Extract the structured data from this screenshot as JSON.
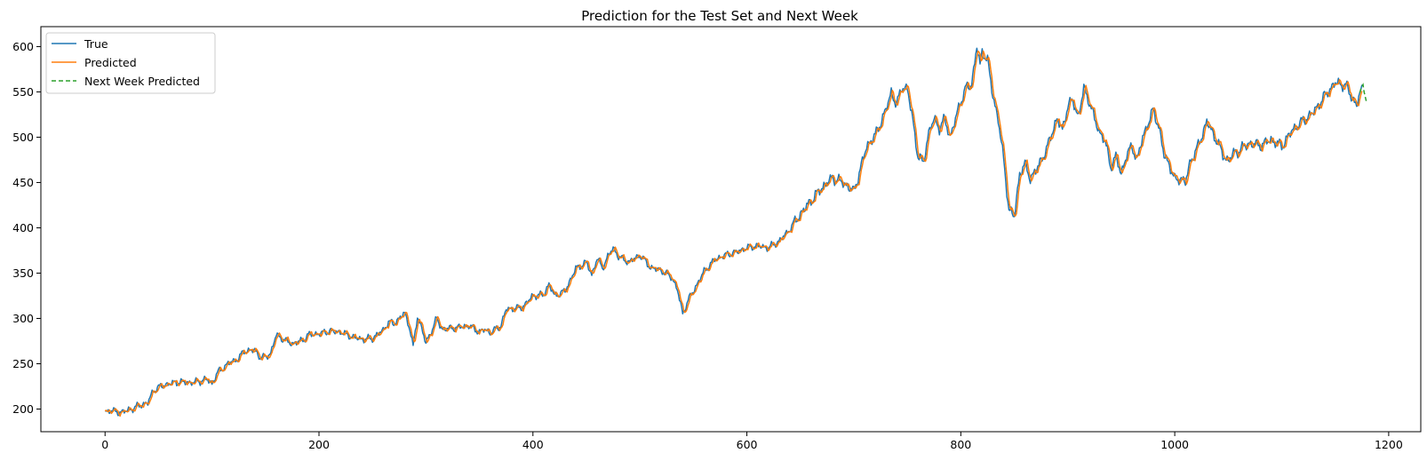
{
  "chart_data": {
    "type": "line",
    "title": "Prediction for the Test Set and Next Week",
    "xlabel": "",
    "ylabel": "",
    "xlim": [
      -60,
      1230
    ],
    "ylim": [
      175,
      622
    ],
    "xticks": [
      0,
      200,
      400,
      600,
      800,
      1000,
      1200
    ],
    "yticks": [
      200,
      250,
      300,
      350,
      400,
      450,
      500,
      550,
      600
    ],
    "grid": false,
    "legend": "top-left",
    "anchors": [
      [
        0,
        196
      ],
      [
        5,
        199
      ],
      [
        12,
        196
      ],
      [
        20,
        198
      ],
      [
        25,
        200
      ],
      [
        30,
        203
      ],
      [
        35,
        205
      ],
      [
        40,
        207
      ],
      [
        45,
        220
      ],
      [
        50,
        224
      ],
      [
        55,
        226
      ],
      [
        60,
        228
      ],
      [
        70,
        230
      ],
      [
        80,
        229
      ],
      [
        90,
        231
      ],
      [
        95,
        233
      ],
      [
        100,
        228
      ],
      [
        105,
        240
      ],
      [
        115,
        250
      ],
      [
        125,
        256
      ],
      [
        130,
        264
      ],
      [
        140,
        265
      ],
      [
        145,
        257
      ],
      [
        150,
        257
      ],
      [
        155,
        262
      ],
      [
        160,
        282
      ],
      [
        168,
        276
      ],
      [
        175,
        272
      ],
      [
        185,
        276
      ],
      [
        190,
        282
      ],
      [
        200,
        283
      ],
      [
        210,
        286
      ],
      [
        220,
        285
      ],
      [
        230,
        280
      ],
      [
        240,
        277
      ],
      [
        250,
        278
      ],
      [
        260,
        287
      ],
      [
        265,
        296
      ],
      [
        270,
        294
      ],
      [
        275,
        300
      ],
      [
        280,
        306
      ],
      [
        285,
        289
      ],
      [
        288,
        268
      ],
      [
        292,
        302
      ],
      [
        296,
        290
      ],
      [
        300,
        272
      ],
      [
        305,
        286
      ],
      [
        310,
        300
      ],
      [
        315,
        288
      ],
      [
        330,
        290
      ],
      [
        340,
        292
      ],
      [
        350,
        285
      ],
      [
        355,
        288
      ],
      [
        360,
        284
      ],
      [
        370,
        292
      ],
      [
        375,
        310
      ],
      [
        390,
        312
      ],
      [
        400,
        325
      ],
      [
        410,
        326
      ],
      [
        415,
        338
      ],
      [
        420,
        325
      ],
      [
        430,
        330
      ],
      [
        440,
        355
      ],
      [
        450,
        362
      ],
      [
        455,
        348
      ],
      [
        460,
        366
      ],
      [
        465,
        356
      ],
      [
        470,
        368
      ],
      [
        475,
        378
      ],
      [
        480,
        368
      ],
      [
        490,
        362
      ],
      [
        500,
        370
      ],
      [
        510,
        356
      ],
      [
        520,
        353
      ],
      [
        530,
        345
      ],
      [
        535,
        332
      ],
      [
        540,
        305
      ],
      [
        545,
        320
      ],
      [
        550,
        330
      ],
      [
        560,
        352
      ],
      [
        570,
        365
      ],
      [
        580,
        370
      ],
      [
        590,
        373
      ],
      [
        600,
        378
      ],
      [
        610,
        380
      ],
      [
        620,
        378
      ],
      [
        630,
        385
      ],
      [
        640,
        398
      ],
      [
        650,
        415
      ],
      [
        660,
        430
      ],
      [
        670,
        444
      ],
      [
        680,
        455
      ],
      [
        690,
        450
      ],
      [
        700,
        440
      ],
      [
        705,
        460
      ],
      [
        712,
        490
      ],
      [
        720,
        502
      ],
      [
        730,
        530
      ],
      [
        735,
        550
      ],
      [
        740,
        535
      ],
      [
        745,
        556
      ],
      [
        750,
        553
      ],
      [
        755,
        520
      ],
      [
        760,
        478
      ],
      [
        765,
        472
      ],
      [
        770,
        505
      ],
      [
        775,
        520
      ],
      [
        780,
        510
      ],
      [
        785,
        520
      ],
      [
        790,
        500
      ],
      [
        795,
        520
      ],
      [
        800,
        540
      ],
      [
        805,
        555
      ],
      [
        810,
        557
      ],
      [
        815,
        601
      ],
      [
        818,
        578
      ],
      [
        820,
        595
      ],
      [
        825,
        585
      ],
      [
        830,
        545
      ],
      [
        835,
        520
      ],
      [
        840,
        475
      ],
      [
        845,
        420
      ],
      [
        850,
        412
      ],
      [
        855,
        460
      ],
      [
        860,
        470
      ],
      [
        865,
        455
      ],
      [
        870,
        462
      ],
      [
        875,
        475
      ],
      [
        880,
        485
      ],
      [
        885,
        505
      ],
      [
        890,
        520
      ],
      [
        895,
        508
      ],
      [
        900,
        535
      ],
      [
        905,
        540
      ],
      [
        910,
        522
      ],
      [
        915,
        554
      ],
      [
        920,
        540
      ],
      [
        925,
        520
      ],
      [
        930,
        505
      ],
      [
        935,
        495
      ],
      [
        940,
        468
      ],
      [
        945,
        478
      ],
      [
        950,
        460
      ],
      [
        955,
        480
      ],
      [
        960,
        490
      ],
      [
        965,
        475
      ],
      [
        970,
        500
      ],
      [
        975,
        515
      ],
      [
        980,
        530
      ],
      [
        985,
        512
      ],
      [
        990,
        480
      ],
      [
        995,
        470
      ],
      [
        1000,
        452
      ],
      [
        1005,
        455
      ],
      [
        1010,
        450
      ],
      [
        1015,
        475
      ],
      [
        1020,
        485
      ],
      [
        1025,
        500
      ],
      [
        1030,
        518
      ],
      [
        1035,
        505
      ],
      [
        1040,
        495
      ],
      [
        1045,
        480
      ],
      [
        1050,
        474
      ],
      [
        1055,
        482
      ],
      [
        1060,
        485
      ],
      [
        1065,
        490
      ],
      [
        1070,
        493
      ],
      [
        1080,
        491
      ],
      [
        1090,
        497
      ],
      [
        1100,
        490
      ],
      [
        1110,
        508
      ],
      [
        1120,
        518
      ],
      [
        1130,
        528
      ],
      [
        1140,
        545
      ],
      [
        1150,
        560
      ],
      [
        1160,
        557
      ],
      [
        1165,
        545
      ],
      [
        1170,
        535
      ],
      [
        1173,
        548
      ],
      [
        1175,
        552
      ]
    ],
    "series": [
      {
        "name": "True",
        "color": "#1f77b4",
        "dash": "solid"
      },
      {
        "name": "Predicted",
        "color": "#ff7f0e",
        "dash": "solid"
      },
      {
        "name": "Next Week Predicted",
        "color": "#2ca02c",
        "dash": "dashed",
        "x": [
          1173,
          1174,
          1175,
          1176,
          1177,
          1178,
          1179
        ],
        "values": [
          549,
          553,
          556,
          558,
          550,
          545,
          540
        ]
      }
    ]
  }
}
